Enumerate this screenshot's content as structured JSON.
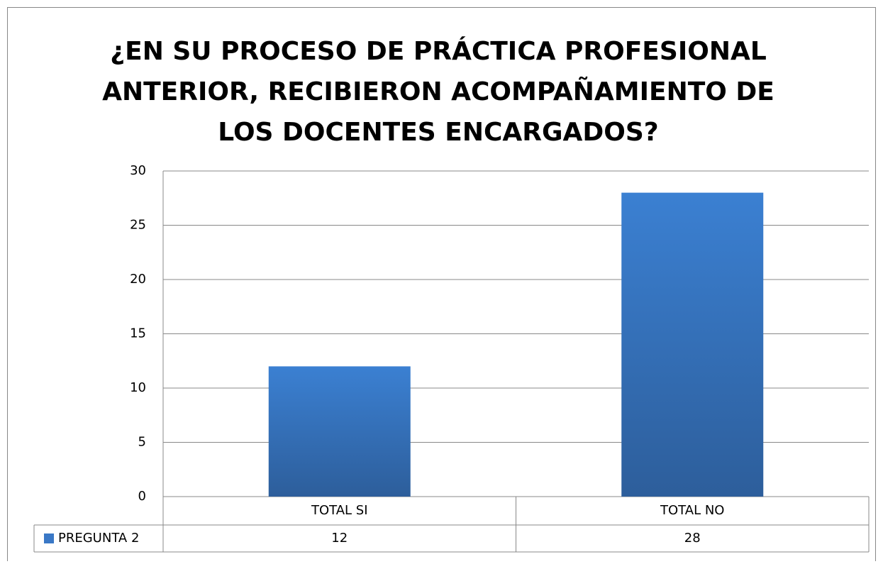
{
  "chart_data": {
    "type": "bar",
    "title": [
      "¿EN SU PROCESO DE PRÁCTICA PROFESIONAL",
      "ANTERIOR,  RECIBIERON ACOMPAÑAMIENTO DE",
      "LOS DOCENTES ENCARGADOS?"
    ],
    "categories": [
      "TOTAL SI",
      "TOTAL NO"
    ],
    "series": [
      {
        "name": "PREGUNTA 2",
        "color": "#3a78c6",
        "values": [
          12,
          28
        ]
      }
    ],
    "ylim": [
      0,
      30
    ],
    "yticks": [
      0,
      5,
      10,
      15,
      20,
      25,
      30
    ],
    "grid": true,
    "data_table": true
  }
}
